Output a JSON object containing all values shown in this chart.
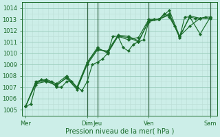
{
  "xlabel": "Pression niveau de la mer( hPa )",
  "bg_color": "#cceee8",
  "grid_color_major": "#99ccbb",
  "grid_color_minor": "#bbddd5",
  "line_color": "#1a6b2a",
  "vline_color": "#336644",
  "ylim": [
    1004.5,
    1014.5
  ],
  "yticks": [
    1005,
    1006,
    1007,
    1008,
    1009,
    1010,
    1011,
    1012,
    1013,
    1014
  ],
  "xlim": [
    0,
    228
  ],
  "day_labels": [
    "Mer",
    "Dim",
    "Jeu",
    "Ven",
    "Sam"
  ],
  "day_positions": [
    4,
    76,
    88,
    148,
    220
  ],
  "vline_positions": [
    76,
    88,
    148,
    220
  ],
  "series1_x": [
    4,
    10,
    16,
    22,
    28,
    34,
    40,
    46,
    52,
    58,
    64,
    70,
    76,
    82,
    88,
    94,
    100,
    106,
    112,
    118,
    124,
    130,
    136,
    142,
    148,
    154,
    160,
    166,
    172,
    178,
    184,
    190,
    196,
    202,
    208,
    214,
    220
  ],
  "series1_y": [
    1005.3,
    1005.5,
    1007.2,
    1007.7,
    1007.5,
    1007.5,
    1007.0,
    1007.0,
    1007.5,
    1007.5,
    1007.0,
    1006.7,
    1007.5,
    1009.0,
    1009.2,
    1009.5,
    1010.0,
    1011.5,
    1011.5,
    1010.5,
    1010.2,
    1010.8,
    1011.0,
    1011.2,
    1012.8,
    1013.0,
    1013.0,
    1013.5,
    1013.2,
    1012.4,
    1011.4,
    1013.2,
    1013.2,
    1013.1,
    1013.1,
    1013.2,
    1013.2
  ],
  "series2_x": [
    4,
    16,
    28,
    40,
    52,
    64,
    76,
    88,
    100,
    112,
    124,
    136,
    148,
    160,
    172,
    184,
    196,
    208,
    220
  ],
  "series2_y": [
    1005.3,
    1007.3,
    1007.5,
    1007.2,
    1007.8,
    1006.8,
    1009.0,
    1010.3,
    1010.2,
    1011.6,
    1011.5,
    1011.1,
    1012.8,
    1013.0,
    1013.5,
    1011.4,
    1013.3,
    1013.1,
    1013.1
  ],
  "series3_x": [
    4,
    16,
    28,
    40,
    52,
    64,
    76,
    88,
    100,
    112,
    124,
    136,
    148,
    160,
    172,
    184,
    196,
    208,
    220
  ],
  "series3_y": [
    1005.3,
    1007.5,
    1007.7,
    1007.3,
    1008.0,
    1007.0,
    1009.2,
    1010.5,
    1010.0,
    1011.5,
    1011.2,
    1011.4,
    1013.0,
    1013.0,
    1013.8,
    1011.5,
    1013.2,
    1011.7,
    1013.2
  ],
  "series4_x": [
    4,
    16,
    28,
    40,
    52,
    64,
    76,
    88,
    100,
    112,
    124,
    136,
    148,
    160,
    172,
    184,
    196,
    208,
    220
  ],
  "series4_y": [
    1005.3,
    1007.4,
    1007.6,
    1007.1,
    1007.9,
    1006.9,
    1009.1,
    1010.4,
    1010.1,
    1011.5,
    1011.4,
    1011.0,
    1012.9,
    1013.0,
    1013.4,
    1011.5,
    1012.4,
    1013.1,
    1013.1
  ],
  "label_fontsize": 6.0,
  "xlabel_fontsize": 7.0
}
